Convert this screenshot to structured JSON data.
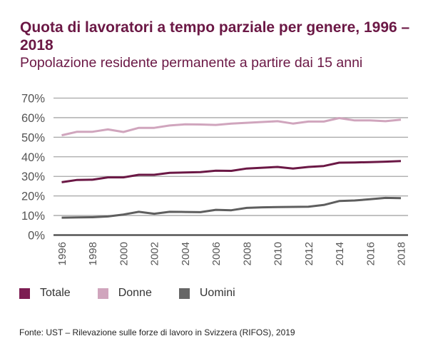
{
  "chart_data": {
    "type": "line",
    "title": "Quota di lavoratori a tempo parziale per genere, 1996 – 2018",
    "subtitle": "Popolazione residente permanente a partire dai 15 anni",
    "xlabel": "",
    "ylabel": "",
    "x": [
      1996,
      1997,
      1998,
      1999,
      2000,
      2001,
      2002,
      2003,
      2004,
      2005,
      2006,
      2007,
      2008,
      2009,
      2010,
      2011,
      2012,
      2013,
      2014,
      2015,
      2016,
      2017,
      2018
    ],
    "x_tick_labels": [
      "1996",
      "1998",
      "2000",
      "2002",
      "2004",
      "2006",
      "2008",
      "2010",
      "2012",
      "2014",
      "2016",
      "2018"
    ],
    "x_tick_values": [
      1996,
      1998,
      2000,
      2002,
      2004,
      2006,
      2008,
      2010,
      2012,
      2014,
      2016,
      2018
    ],
    "y_tick_labels": [
      "0%",
      "10%",
      "20%",
      "30%",
      "40%",
      "50%",
      "60%",
      "70%"
    ],
    "y_tick_values": [
      0,
      10,
      20,
      30,
      40,
      50,
      60,
      70
    ],
    "ylim": [
      0,
      70
    ],
    "grid": true,
    "legend_position": "bottom-left",
    "series": [
      {
        "name": "Totale",
        "color": "#6b1845",
        "values": [
          27.0,
          28.2,
          28.3,
          29.5,
          29.5,
          30.8,
          30.8,
          31.8,
          32.0,
          32.2,
          32.9,
          32.8,
          34.0,
          34.4,
          34.8,
          34.0,
          34.8,
          35.3,
          37.0,
          37.1,
          37.3,
          37.5,
          37.8
        ]
      },
      {
        "name": "Donne",
        "color": "#d0a5bd",
        "values": [
          51.0,
          52.8,
          52.8,
          54.0,
          52.7,
          54.8,
          54.8,
          56.0,
          56.6,
          56.5,
          56.3,
          57.0,
          57.4,
          57.8,
          58.2,
          57.0,
          58.0,
          58.0,
          59.8,
          58.6,
          58.6,
          58.2,
          59.0
        ]
      },
      {
        "name": "Uomini",
        "color": "#5e5e5e",
        "values": [
          8.9,
          9.0,
          9.1,
          9.5,
          10.5,
          11.9,
          10.9,
          11.9,
          11.8,
          11.7,
          12.9,
          12.7,
          13.9,
          14.2,
          14.3,
          14.4,
          14.5,
          15.4,
          17.4,
          17.7,
          18.3,
          19.0,
          18.9
        ]
      }
    ]
  },
  "source": "Fonte: UST – Rilevazione sulle forze di lavoro in Svizzera (RIFOS), 2019"
}
